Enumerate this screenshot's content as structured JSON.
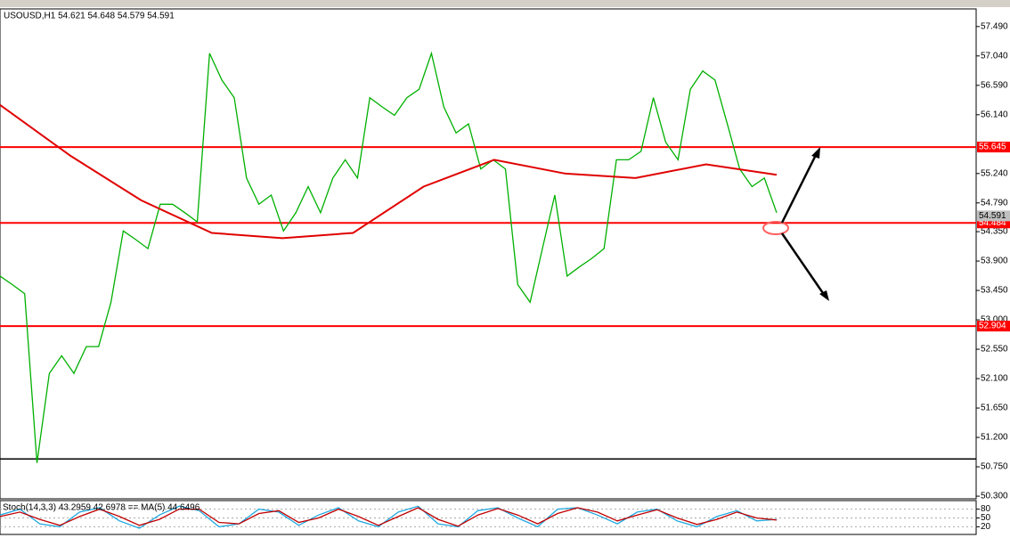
{
  "chart_data": [
    {
      "type": "line",
      "title": "USOUSD,H1  54.621 54.648 54.579 54.591",
      "series": [
        {
          "color": "#00b000",
          "values": [
            53.67,
            53.54,
            53.4,
            50.81,
            52.18,
            52.45,
            52.18,
            52.59,
            52.59,
            53.27,
            54.36,
            54.23,
            54.09,
            54.77,
            54.77,
            54.64,
            54.5,
            57.08,
            56.67,
            56.4,
            55.17,
            54.77,
            54.91,
            54.36,
            54.64,
            55.04,
            54.64,
            55.17,
            55.45,
            55.17,
            56.4,
            56.26,
            56.13,
            56.4,
            56.53,
            57.08,
            56.26,
            55.86,
            56.0,
            55.31,
            55.45,
            55.31,
            53.54,
            53.27,
            54.09,
            54.91,
            53.67,
            53.81,
            53.94,
            54.09,
            55.45,
            55.45,
            55.58,
            56.4,
            55.72,
            55.45,
            56.53,
            56.81,
            56.67,
            56.0,
            55.31,
            55.04,
            55.17,
            54.64
          ]
        },
        {
          "color": "#e00000",
          "values": [
            56.29,
            55.51,
            54.83,
            54.33,
            54.25,
            54.33,
            55.04,
            55.45,
            55.24,
            55.17,
            55.38,
            55.22
          ]
        }
      ],
      "ylim": [
        50.26,
        57.76
      ],
      "yticks": [
        {
          "value": 57.49,
          "label": "57.490"
        },
        {
          "value": 57.04,
          "label": "57.040"
        },
        {
          "value": 56.59,
          "label": "56.590"
        },
        {
          "value": 56.14,
          "label": "56.140"
        },
        {
          "value": 55.24,
          "label": "55.240"
        },
        {
          "value": 54.79,
          "label": "54.790"
        },
        {
          "value": 54.35,
          "label": "54.350"
        },
        {
          "value": 53.9,
          "label": "53.900"
        },
        {
          "value": 53.45,
          "label": "53.450"
        },
        {
          "value": 53.0,
          "label": "53.000"
        },
        {
          "value": 52.55,
          "label": "52.550"
        },
        {
          "value": 52.1,
          "label": "52.100"
        },
        {
          "value": 51.65,
          "label": "51.650"
        },
        {
          "value": 51.2,
          "label": "51.200"
        },
        {
          "value": 50.75,
          "label": "50.750"
        },
        {
          "value": 50.3,
          "label": "50.300"
        }
      ],
      "levels": {
        "color": "#ff0000",
        "values": [
          55.645,
          54.484,
          52.904
        ]
      },
      "support_line": {
        "color": "#000000",
        "value": 50.87
      },
      "last_price": 54.591
    },
    {
      "type": "line",
      "title": "Stoch(14,3,3) 43.2959 42.6978 == MA(5) 44.6496",
      "series": [
        {
          "color": "#20a8e0",
          "values": [
            60,
            80,
            30,
            20,
            70,
            85,
            40,
            15,
            60,
            90,
            75,
            20,
            30,
            80,
            70,
            25,
            60,
            85,
            40,
            20,
            70,
            90,
            30,
            20,
            75,
            85,
            50,
            20,
            80,
            85,
            60,
            30,
            70,
            80,
            40,
            20,
            55,
            75,
            40,
            45
          ]
        },
        {
          "color": "#c00000",
          "values": [
            55,
            70,
            45,
            25,
            55,
            80,
            55,
            25,
            45,
            80,
            80,
            35,
            30,
            65,
            75,
            35,
            50,
            80,
            55,
            25,
            55,
            85,
            45,
            22,
            60,
            82,
            60,
            30,
            65,
            85,
            70,
            40,
            60,
            78,
            50,
            28,
            45,
            70,
            50,
            43
          ]
        }
      ],
      "ylim": [
        0,
        100
      ],
      "yticks": [
        20,
        50,
        80
      ]
    }
  ]
}
